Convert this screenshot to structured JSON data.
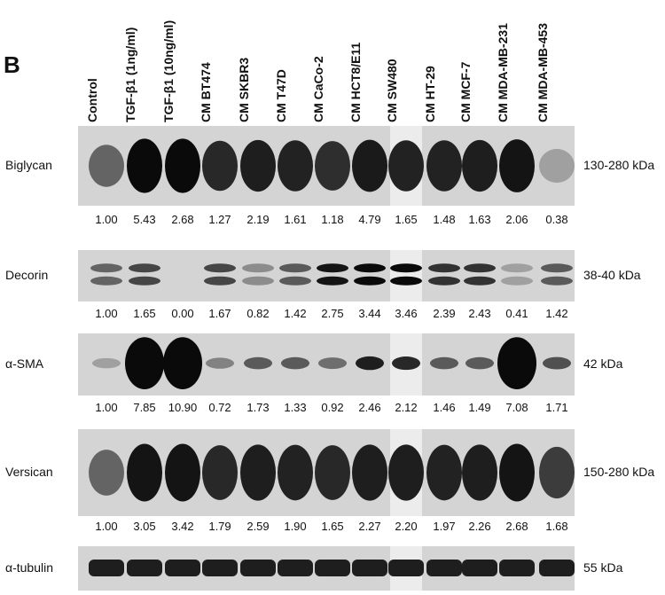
{
  "panel": "B",
  "lanes": [
    "Control",
    "TGF-β1 (1ng/ml)",
    "TGF-β1 (10ng/ml)",
    "CM BT474",
    "CM SKBR3",
    "CM T47D",
    "CM CaCo-2",
    "CM HCT8/E11",
    "CM SW480",
    "CM HT-29",
    "CM MCF-7",
    "CM MDA-MB-231",
    "CM MDA-MB-453"
  ],
  "blots": [
    {
      "protein": "Biglycan",
      "size": "130-280 kDa",
      "quant": [
        "1.00",
        "5.43",
        "2.68",
        "1.27",
        "2.19",
        "1.61",
        "1.18",
        "4.79",
        "1.65",
        "1.48",
        "1.63",
        "2.06",
        "0.38"
      ],
      "intensity": [
        0.55,
        1.0,
        1.0,
        0.85,
        0.9,
        0.88,
        0.82,
        0.92,
        0.88,
        0.88,
        0.9,
        0.95,
        0.25
      ]
    },
    {
      "protein": "Decorin",
      "size": "38-40 kDa",
      "quant": [
        "1.00",
        "1.65",
        "0.00",
        "1.67",
        "0.82",
        "1.42",
        "2.75",
        "3.44",
        "3.46",
        "2.39",
        "2.43",
        "0.41",
        "1.42"
      ],
      "intensity": [
        0.55,
        0.7,
        0.0,
        0.7,
        0.35,
        0.6,
        0.95,
        1.0,
        1.0,
        0.8,
        0.8,
        0.25,
        0.6
      ]
    },
    {
      "protein": "α-SMA",
      "size": "42 kDa",
      "quant": [
        "1.00",
        "7.85",
        "10.90",
        "0.72",
        "1.73",
        "1.33",
        "0.92",
        "2.46",
        "2.12",
        "1.46",
        "1.49",
        "7.08",
        "1.71"
      ],
      "intensity": [
        0.25,
        1.0,
        1.0,
        0.4,
        0.6,
        0.6,
        0.5,
        0.9,
        0.85,
        0.6,
        0.6,
        1.0,
        0.65
      ]
    },
    {
      "protein": "Versican",
      "size": "150-280 kDa",
      "quant": [
        "1.00",
        "3.05",
        "3.42",
        "1.79",
        "2.59",
        "1.90",
        "1.65",
        "2.27",
        "2.20",
        "1.97",
        "2.26",
        "2.68",
        "1.68"
      ],
      "intensity": [
        0.55,
        0.95,
        0.95,
        0.85,
        0.9,
        0.88,
        0.85,
        0.9,
        0.9,
        0.88,
        0.9,
        0.95,
        0.75
      ]
    },
    {
      "protein": "α-tubulin",
      "size": "55 kDa",
      "quant": [],
      "intensity": [
        0.9,
        0.9,
        0.9,
        0.9,
        0.9,
        0.9,
        0.9,
        0.9,
        0.9,
        0.9,
        0.9,
        0.9,
        0.9
      ]
    }
  ]
}
